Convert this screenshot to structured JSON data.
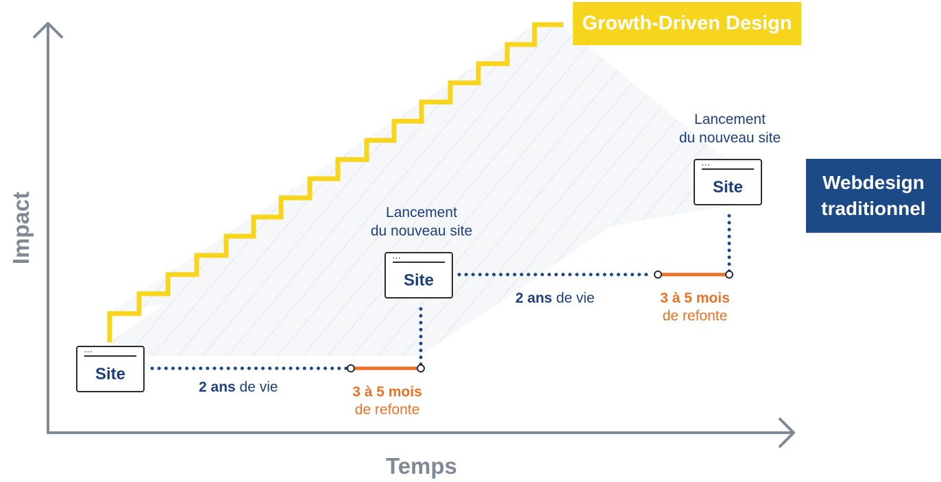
{
  "axes": {
    "y_label": "Impact",
    "x_label": "Temps"
  },
  "growth_label": "Growth-Driven Design",
  "traditional_label": {
    "line1": "Webdesign",
    "line2": "traditionnel"
  },
  "site_label": "Site",
  "launch_note": {
    "line1": "Lancement",
    "line2": "du nouveau site"
  },
  "lifespan": {
    "bold": "2 ans",
    "rest": "de vie"
  },
  "redesign": {
    "bold": "3 à 5 mois",
    "rest": "de refonte"
  },
  "colors": {
    "yellow": "#f7d51d",
    "navy": "#1c4a86",
    "orange": "#ea7126",
    "axis": "#7f8a96",
    "text_blue": "#1c3f7c"
  }
}
